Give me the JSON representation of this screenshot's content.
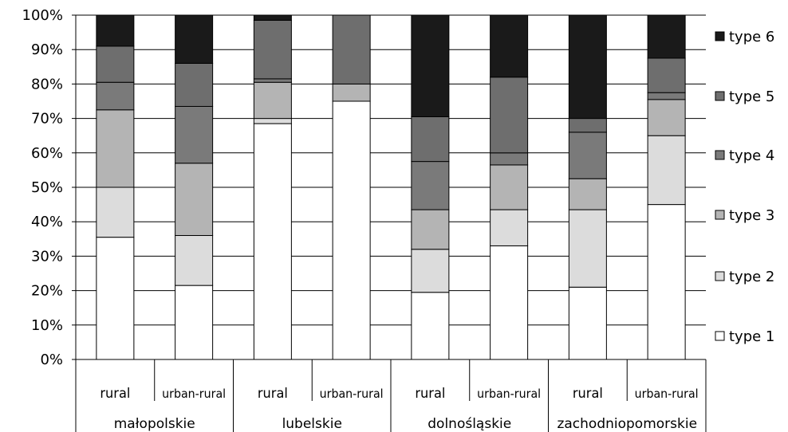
{
  "chart_data": {
    "type": "bar",
    "stacked": true,
    "percent": true,
    "groups": [
      {
        "label": "małopolskie",
        "categories": [
          "rural",
          "urban-rural"
        ]
      },
      {
        "label": "lubelskie",
        "categories": [
          "rural",
          "urban-rural"
        ]
      },
      {
        "label": "dolnośląskie",
        "categories": [
          "rural",
          "urban-rural"
        ]
      },
      {
        "label": "zachodniopomorskie",
        "categories": [
          "rural",
          "urban-rural"
        ]
      }
    ],
    "categories": [
      "rural",
      "urban-rural",
      "rural",
      "urban-rural",
      "rural",
      "urban-rural",
      "rural",
      "urban-rural"
    ],
    "series": [
      {
        "name": "type 1",
        "color": "#ffffff",
        "values": [
          35.5,
          21.5,
          68.5,
          75,
          19.5,
          33,
          21,
          45
        ]
      },
      {
        "name": "type 2",
        "color": "#dcdcdc",
        "values": [
          14.5,
          14.5,
          1.5,
          0,
          12.5,
          10.5,
          22.5,
          20
        ]
      },
      {
        "name": "type 3",
        "color": "#b4b4b4",
        "values": [
          22.5,
          21,
          10.5,
          5,
          11.5,
          13,
          9,
          10.5
        ]
      },
      {
        "name": "type 4",
        "color": "#7a7a7a",
        "values": [
          8,
          16.5,
          1,
          0,
          14,
          3.5,
          13.5,
          2
        ]
      },
      {
        "name": "type 5",
        "color": "#6e6e6e",
        "values": [
          10.5,
          12.5,
          17,
          20,
          13,
          22,
          4,
          10
        ]
      },
      {
        "name": "type 6",
        "color": "#1a1a1a",
        "values": [
          9,
          14,
          1.5,
          0,
          29.5,
          18,
          30,
          12.5
        ]
      }
    ],
    "yticks": [
      "0%",
      "10%",
      "20%",
      "30%",
      "40%",
      "50%",
      "60%",
      "70%",
      "80%",
      "90%",
      "100%"
    ],
    "ylim": [
      0,
      100
    ],
    "grid": true,
    "legend_order": [
      "type 6",
      "type 5",
      "type 4",
      "type 3",
      "type 2",
      "type 1"
    ],
    "legend_position": "right"
  }
}
